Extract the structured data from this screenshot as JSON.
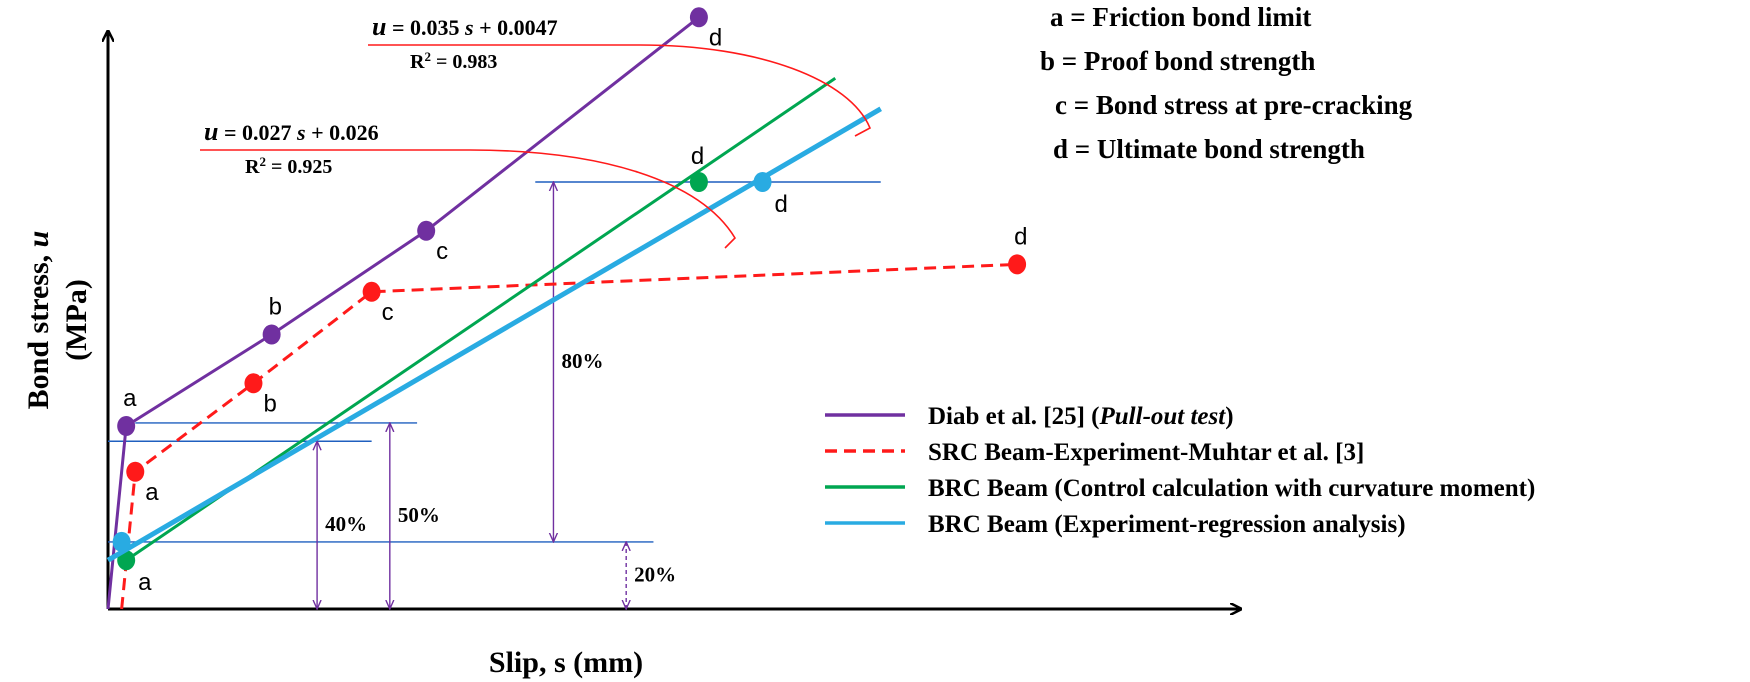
{
  "chart_data": {
    "type": "line",
    "title": "",
    "xlabel": "Slip, s (mm)",
    "ylabel": "Bond stress, ",
    "ylabel_var": "u",
    "ylabel_unit": "(MPa)",
    "xlim": [
      0,
      1.1
    ],
    "ylim": [
      0,
      1.0
    ],
    "grid": false,
    "axis_ticks": "none",
    "legend_position": "lower-right",
    "series": [
      {
        "name": "Diab et al. [25] (",
        "name_italic": "Pull-out test",
        "name_close": ")",
        "color": "#7030a0",
        "style": "solid",
        "x": [
          0.0,
          0.02,
          0.18,
          0.35,
          0.65
        ],
        "y": [
          0.0,
          0.3,
          0.45,
          0.62,
          0.97
        ],
        "point_labels": [
          "",
          "a",
          "b",
          "c",
          "d"
        ],
        "marker_at": [
          1,
          2,
          3,
          4
        ]
      },
      {
        "name": "SRC Beam-Experiment-Muhtar et al. [3]",
        "color": "#ff1a1a",
        "style": "dashed",
        "x": [
          0.015,
          0.03,
          0.16,
          0.29,
          1.0
        ],
        "y": [
          0.0,
          0.225,
          0.37,
          0.52,
          0.565
        ],
        "point_labels": [
          "",
          "a",
          "b",
          "c",
          "d"
        ],
        "marker_at": [
          1,
          2,
          3,
          4
        ]
      },
      {
        "name": "BRC Beam (Control calculation with curvature moment)",
        "color": "#00a651",
        "style": "solid",
        "x": [
          0.02,
          0.8
        ],
        "y": [
          0.08,
          0.87
        ],
        "points": [
          {
            "x": 0.02,
            "y": 0.08,
            "label": "a"
          },
          {
            "x": 0.65,
            "y": 0.7,
            "label": "d"
          }
        ]
      },
      {
        "name": "BRC Beam (Experiment-regression analysis)",
        "color": "#29abe2",
        "style": "solid",
        "x": [
          0.0,
          0.85
        ],
        "y": [
          0.08,
          0.82
        ],
        "points": [
          {
            "x": 0.015,
            "y": 0.11,
            "label": ""
          },
          {
            "x": 0.72,
            "y": 0.7,
            "label": "d"
          }
        ]
      }
    ],
    "reference_lines": [
      {
        "y": 0.11,
        "x_range": [
          0.0,
          0.6
        ]
      },
      {
        "y": 0.305,
        "x_range": [
          0.03,
          0.34
        ]
      },
      {
        "y": 0.275,
        "x_range": [
          0.0,
          0.29
        ]
      },
      {
        "y": 0.7,
        "x_range": [
          0.47,
          0.85
        ]
      }
    ],
    "percent_annotations": [
      {
        "label": "20%",
        "x": 0.57,
        "y_from": 0.0,
        "y_to": 0.11
      },
      {
        "label": "40%",
        "x": 0.23,
        "y_from": 0.0,
        "y_to": 0.275
      },
      {
        "label": "50%",
        "x": 0.31,
        "y_from": 0.0,
        "y_to": 0.305
      },
      {
        "label": "80%",
        "x": 0.49,
        "y_from": 0.11,
        "y_to": 0.7
      }
    ],
    "equations": [
      {
        "var": "u",
        "rhs_a": " = 0.035 ",
        "svar": "s",
        "rhs_b": " + 0.0047",
        "r2_pre": "R",
        "r2_sup": "2",
        "r2_post": " = 0.983"
      },
      {
        "var": "u",
        "rhs_a": " = 0.027 ",
        "svar": "s",
        "rhs_b": " + 0.026",
        "r2_pre": "R",
        "r2_sup": "2",
        "r2_post": " = 0.925"
      }
    ],
    "key_descriptions": [
      "a = Friction bond limit",
      "b = Proof bond strength",
      "c = Bond stress at pre-cracking",
      "d = Ultimate bond strength"
    ]
  }
}
